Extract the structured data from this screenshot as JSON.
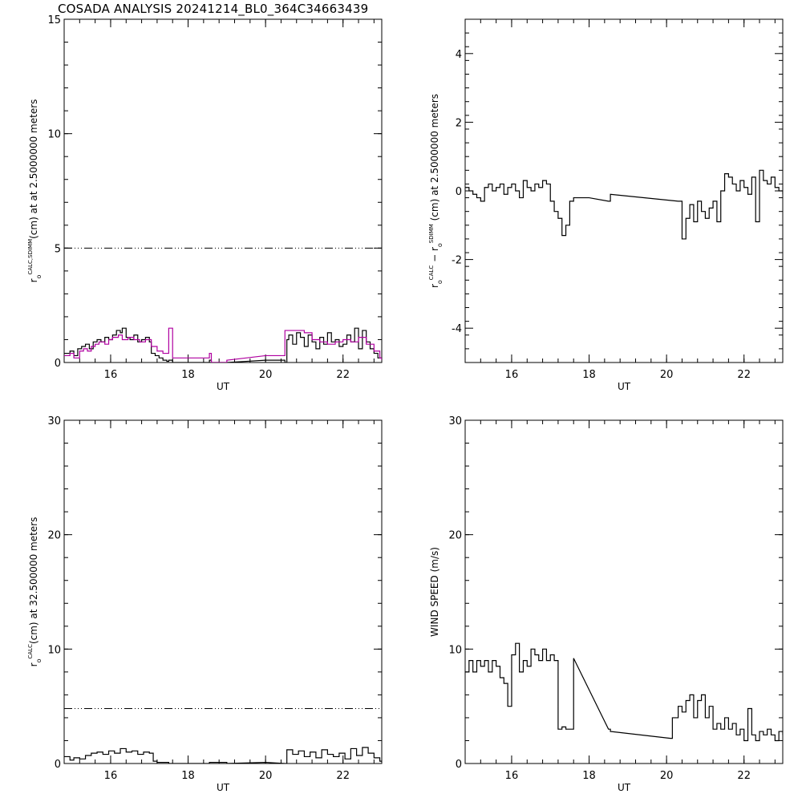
{
  "page": {
    "title": "COSADA ANALYSIS 20241214_BL0_364C34663439"
  },
  "chart_data": [
    {
      "type": "line",
      "xlabel": "UT",
      "ylabel": {
        "base": "r",
        "sub": "o",
        "sup": "CALC,SDIMM",
        "rest": "(cm) at  at 2.5000000 meters"
      },
      "xlim": [
        14.8,
        23.0
      ],
      "ylim": [
        0,
        15
      ],
      "xticks": [
        16,
        18,
        20,
        22
      ],
      "yticks": [
        0,
        5,
        10,
        15
      ],
      "hline": {
        "y": 5,
        "style": "dash-dot-dot"
      },
      "series": [
        {
          "color": "#000000",
          "step": true,
          "x": [
            14.8,
            14.95,
            15.05,
            15.15,
            15.25,
            15.35,
            15.45,
            15.55,
            15.65,
            15.75,
            15.85,
            15.95,
            16.05,
            16.15,
            16.25,
            16.3,
            16.4,
            16.5,
            16.6,
            16.7,
            16.8,
            16.9,
            17.0,
            17.05,
            17.15,
            17.25,
            17.35,
            17.45,
            17.5,
            17.6,
            17.8,
            18.0,
            18.3,
            18.5,
            18.55,
            18.6,
            19.0,
            19.5,
            20.0,
            20.3,
            20.5,
            20.55,
            20.6,
            20.7,
            20.8,
            20.9,
            21.0,
            21.1,
            21.2,
            21.3,
            21.4,
            21.5,
            21.6,
            21.7,
            21.8,
            21.9,
            22.0,
            22.1,
            22.2,
            22.3,
            22.4,
            22.5,
            22.6,
            22.7,
            22.8,
            22.9,
            23.0
          ],
          "y": [
            0.4,
            0.5,
            0.3,
            0.6,
            0.7,
            0.8,
            0.6,
            0.9,
            1.0,
            0.9,
            1.1,
            1.0,
            1.2,
            1.4,
            1.3,
            1.5,
            1.1,
            1.0,
            1.2,
            0.9,
            1.0,
            1.1,
            0.9,
            0.4,
            0.3,
            0.2,
            0.1,
            0.05,
            0.1,
            0.0,
            0.0,
            0.0,
            0.0,
            0.0,
            0.1,
            0.0,
            0.0,
            0.05,
            0.1,
            0.1,
            0.0,
            1.0,
            1.2,
            0.8,
            1.3,
            1.1,
            0.7,
            1.2,
            0.9,
            0.6,
            1.1,
            0.8,
            1.3,
            0.9,
            1.0,
            0.7,
            0.8,
            1.2,
            0.9,
            1.5,
            0.6,
            1.4,
            0.9,
            0.6,
            0.4,
            0.2,
            0.1
          ]
        },
        {
          "color": "#b000a0",
          "step": true,
          "x": [
            14.8,
            14.95,
            15.05,
            15.2,
            15.3,
            15.4,
            15.5,
            15.6,
            15.7,
            15.85,
            15.95,
            16.05,
            16.2,
            16.3,
            16.45,
            16.6,
            16.75,
            16.9,
            17.05,
            17.2,
            17.35,
            17.5,
            17.6,
            18.0,
            18.5,
            18.55,
            18.6,
            19.0,
            19.5,
            20.0,
            20.35,
            20.5,
            20.6,
            21.0,
            21.2,
            21.4,
            21.6,
            21.8,
            22.0,
            22.2,
            22.4,
            22.6,
            22.8,
            22.95,
            23.0
          ],
          "y": [
            0.3,
            0.4,
            0.2,
            0.5,
            0.6,
            0.5,
            0.7,
            0.8,
            0.9,
            0.8,
            1.0,
            1.1,
            1.2,
            1.0,
            1.1,
            1.0,
            0.9,
            1.0,
            0.7,
            0.5,
            0.4,
            1.5,
            0.2,
            0.2,
            0.2,
            0.4,
            0.0,
            0.1,
            0.2,
            0.3,
            0.3,
            1.4,
            1.4,
            1.3,
            1.0,
            0.9,
            0.8,
            0.9,
            1.0,
            0.9,
            1.1,
            0.8,
            0.5,
            0.2,
            0.1
          ]
        }
      ]
    },
    {
      "type": "line",
      "xlabel": "UT",
      "ylabel": {
        "base": "r",
        "sub": "o",
        "sup": "CALC",
        "mid": " − r",
        "sub2": "o",
        "sup2": "SDIMM",
        "rest": " (cm) at 2.5000000 meters"
      },
      "xlim": [
        14.8,
        23.0
      ],
      "ylim": [
        -5,
        5
      ],
      "xticks": [
        16,
        18,
        20,
        22
      ],
      "yticks": [
        -4,
        -2,
        0,
        2,
        4
      ],
      "series": [
        {
          "color": "#000000",
          "step": true,
          "x": [
            14.8,
            14.9,
            15.0,
            15.1,
            15.2,
            15.3,
            15.4,
            15.5,
            15.6,
            15.7,
            15.8,
            15.9,
            16.0,
            16.1,
            16.2,
            16.3,
            16.4,
            16.5,
            16.6,
            16.7,
            16.8,
            16.9,
            17.0,
            17.1,
            17.2,
            17.3,
            17.4,
            17.5,
            17.6,
            18.0,
            18.5,
            18.55,
            20.3,
            20.4,
            20.5,
            20.6,
            20.7,
            20.8,
            20.9,
            21.0,
            21.1,
            21.2,
            21.3,
            21.4,
            21.5,
            21.6,
            21.7,
            21.8,
            21.9,
            22.0,
            22.1,
            22.2,
            22.3,
            22.4,
            22.5,
            22.6,
            22.7,
            22.8,
            22.9,
            23.0
          ],
          "y": [
            0.1,
            0.0,
            -0.1,
            -0.2,
            -0.3,
            0.1,
            0.2,
            0.0,
            0.1,
            0.2,
            -0.1,
            0.1,
            0.2,
            0.0,
            -0.2,
            0.3,
            0.1,
            0.0,
            0.2,
            0.1,
            0.3,
            0.2,
            -0.3,
            -0.6,
            -0.8,
            -1.3,
            -1.0,
            -0.3,
            -0.2,
            -0.2,
            -0.3,
            -0.1,
            -0.3,
            -1.4,
            -0.8,
            -0.4,
            -0.9,
            -0.3,
            -0.6,
            -0.8,
            -0.5,
            -0.3,
            -0.9,
            0.0,
            0.5,
            0.4,
            0.2,
            0.0,
            0.3,
            0.1,
            -0.1,
            0.4,
            -0.9,
            0.6,
            0.3,
            0.2,
            0.4,
            0.1,
            0.0,
            -0.1
          ]
        }
      ]
    },
    {
      "type": "line",
      "xlabel": "UT",
      "ylabel": {
        "base": "r",
        "sub": "o",
        "sup": "CALC",
        "rest": "(cm) at 32.500000 meters"
      },
      "xlim": [
        14.8,
        23.0
      ],
      "ylim": [
        0,
        30
      ],
      "xticks": [
        16,
        18,
        20,
        22
      ],
      "yticks": [
        0,
        10,
        20,
        30
      ],
      "hline": {
        "y": 4.8,
        "style": "dash-dot-dot"
      },
      "series": [
        {
          "color": "#000000",
          "step": true,
          "x": [
            14.8,
            14.95,
            15.05,
            15.2,
            15.35,
            15.5,
            15.65,
            15.8,
            15.95,
            16.1,
            16.25,
            16.4,
            16.55,
            16.7,
            16.85,
            17.0,
            17.1,
            17.2,
            17.5,
            18.0,
            18.5,
            18.55,
            19.0,
            20.0,
            20.5,
            20.55,
            20.7,
            20.85,
            21.0,
            21.15,
            21.3,
            21.45,
            21.6,
            21.75,
            21.9,
            22.05,
            22.2,
            22.35,
            22.5,
            22.65,
            22.8,
            22.95,
            23.0
          ],
          "y": [
            0.6,
            0.3,
            0.5,
            0.4,
            0.7,
            0.9,
            1.0,
            0.8,
            1.1,
            0.9,
            1.3,
            1.0,
            1.1,
            0.8,
            1.0,
            0.9,
            0.2,
            0.1,
            0.0,
            0.0,
            0.0,
            0.1,
            0.0,
            0.1,
            0.0,
            1.2,
            0.8,
            1.1,
            0.6,
            1.0,
            0.5,
            1.2,
            0.8,
            0.6,
            0.9,
            0.4,
            1.3,
            0.7,
            1.4,
            0.9,
            0.5,
            0.2,
            0.1
          ]
        }
      ]
    },
    {
      "type": "line",
      "xlabel": "UT",
      "ylabel": {
        "base": "WIND SPEED (m/s)"
      },
      "xlim": [
        14.8,
        23.0
      ],
      "ylim": [
        0,
        30
      ],
      "xticks": [
        16,
        18,
        20,
        22
      ],
      "yticks": [
        0,
        10,
        20,
        30
      ],
      "series": [
        {
          "color": "#000000",
          "step": true,
          "x": [
            14.8,
            14.9,
            15.0,
            15.1,
            15.2,
            15.3,
            15.4,
            15.5,
            15.6,
            15.7,
            15.8,
            15.9,
            16.0,
            16.1,
            16.2,
            16.3,
            16.4,
            16.5,
            16.6,
            16.7,
            16.8,
            16.9,
            17.0,
            17.1,
            17.2,
            17.3,
            17.4,
            17.5,
            17.6,
            18.5,
            18.55,
            20.1,
            20.15,
            20.3,
            20.4,
            20.5,
            20.6,
            20.7,
            20.8,
            20.9,
            21.0,
            21.1,
            21.2,
            21.3,
            21.4,
            21.5,
            21.6,
            21.7,
            21.8,
            21.9,
            22.0,
            22.1,
            22.2,
            22.3,
            22.4,
            22.5,
            22.6,
            22.7,
            22.8,
            22.9,
            23.0
          ],
          "y": [
            8.0,
            9.0,
            8.0,
            9.0,
            8.5,
            9.0,
            8.0,
            9.0,
            8.5,
            7.5,
            7.0,
            5.0,
            9.5,
            10.5,
            8.0,
            9.0,
            8.5,
            10.0,
            9.5,
            9.0,
            10.0,
            9.0,
            9.5,
            9.0,
            3.0,
            3.2,
            3.0,
            3.0,
            9.2,
            3.0,
            2.8,
            2.2,
            4.0,
            5.0,
            4.5,
            5.5,
            6.0,
            4.0,
            5.5,
            6.0,
            4.0,
            5.0,
            3.0,
            3.5,
            3.0,
            4.0,
            3.0,
            3.5,
            2.5,
            3.0,
            2.0,
            4.8,
            2.5,
            2.0,
            2.8,
            2.5,
            3.0,
            2.5,
            2.0,
            2.8,
            2.5
          ]
        }
      ]
    }
  ]
}
